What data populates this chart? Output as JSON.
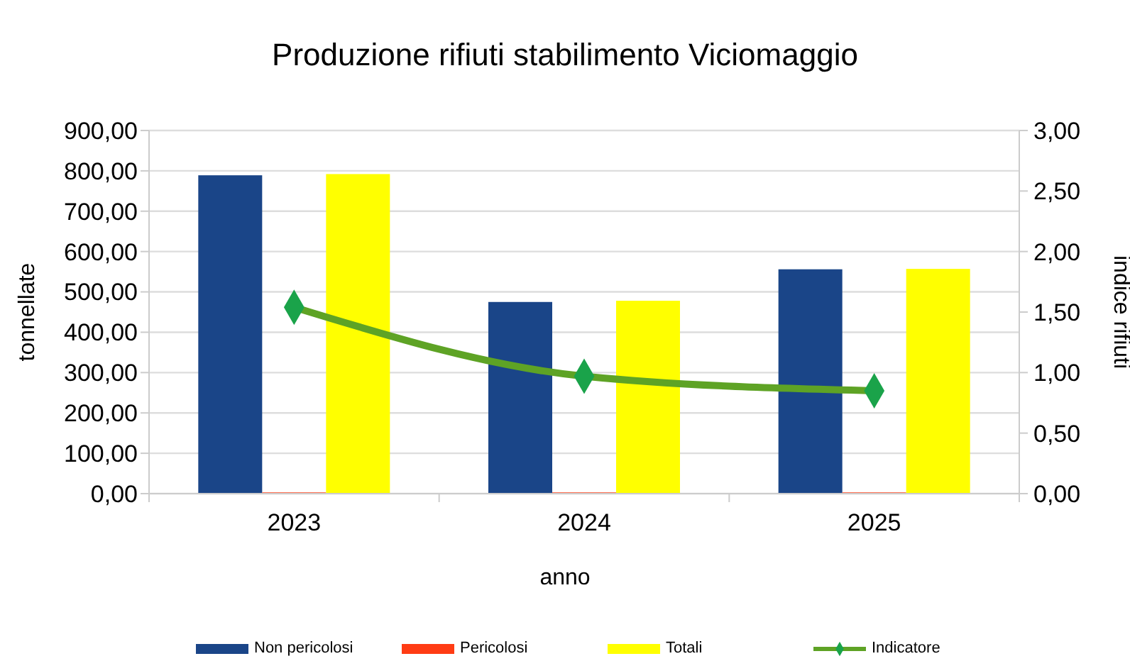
{
  "chart_data": {
    "type": "bar",
    "title": "Produzione rifiuti stabilimento Viciomaggio",
    "xlabel": "anno",
    "ylabel": "tonnellate",
    "y2label": "indice rifiuti",
    "categories": [
      "2023",
      "2024",
      "2025"
    ],
    "series": [
      {
        "name": "Non pericolosi",
        "color": "#1a4588",
        "values": [
          789,
          475,
          556
        ]
      },
      {
        "name": "Pericolosi",
        "color": "#ff3c14",
        "values": [
          3,
          3,
          3
        ]
      },
      {
        "name": "Totali",
        "color": "#ffff00",
        "values": [
          792,
          478,
          557
        ]
      },
      {
        "name": "Indicatore",
        "type": "line",
        "axis": "y2",
        "color": "#5ea325",
        "marker": "diamond",
        "values": [
          1.54,
          0.97,
          0.85
        ]
      }
    ],
    "ylim": [
      0,
      900
    ],
    "yticks": [
      {
        "value": 0,
        "label": "0,00"
      },
      {
        "value": 100,
        "label": "100,00"
      },
      {
        "value": 200,
        "label": "200,00"
      },
      {
        "value": 300,
        "label": "300,00"
      },
      {
        "value": 400,
        "label": "400,00"
      },
      {
        "value": 500,
        "label": "500,00"
      },
      {
        "value": 600,
        "label": "600,00"
      },
      {
        "value": 700,
        "label": "700,00"
      },
      {
        "value": 800,
        "label": "800,00"
      },
      {
        "value": 900,
        "label": "900,00"
      }
    ],
    "y2lim": [
      0,
      3
    ],
    "y2ticks": [
      {
        "value": 0,
        "label": "0,00"
      },
      {
        "value": 0.5,
        "label": "0,50"
      },
      {
        "value": 1,
        "label": "1,00"
      },
      {
        "value": 1.5,
        "label": "1,50"
      },
      {
        "value": 2,
        "label": "2,00"
      },
      {
        "value": 2.5,
        "label": "2,50"
      },
      {
        "value": 3,
        "label": "3,00"
      }
    ],
    "grid": "y",
    "legend": "bottom"
  }
}
